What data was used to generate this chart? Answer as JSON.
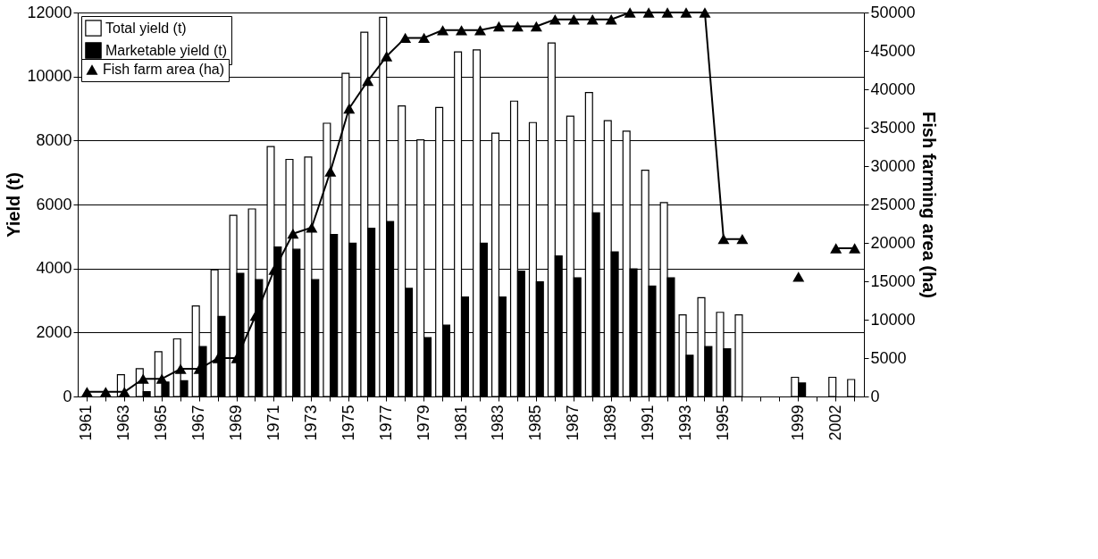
{
  "chart_data": {
    "type": "bar",
    "ylabel": "Yield (t)",
    "y2label": "Fish farming area (ha)",
    "categories": [
      "1961",
      null,
      "1963",
      null,
      "1965",
      null,
      "1967",
      null,
      "1969",
      null,
      "1971",
      null,
      "1973",
      null,
      "1975",
      null,
      "1977",
      null,
      "1979",
      null,
      "1981",
      null,
      "1983",
      null,
      "1985",
      null,
      "1987",
      null,
      "1989",
      null,
      "1991",
      null,
      "1993",
      null,
      "1995",
      null,
      null,
      null,
      "1999",
      null,
      "2002",
      null
    ],
    "series": [
      {
        "name": "Total yield (t)",
        "color": "#ffffff",
        "values": [
          null,
          null,
          680,
          870,
          1400,
          1800,
          2830,
          3960,
          5660,
          5860,
          7810,
          7410,
          7480,
          8540,
          10100,
          11380,
          11850,
          9080,
          8020,
          9030,
          10770,
          10830,
          8230,
          9230,
          8560,
          11050,
          8760,
          9500,
          8620,
          8290,
          7070,
          6060,
          2550,
          3090,
          2630,
          2550,
          null,
          null,
          600,
          null,
          600,
          530
        ]
      },
      {
        "name": "Marketable yield (t)",
        "color": "#000000",
        "values": [
          null,
          null,
          null,
          150,
          450,
          490,
          1560,
          2500,
          3850,
          3650,
          4670,
          4600,
          3650,
          5060,
          4790,
          5260,
          5470,
          3380,
          1840,
          2230,
          3110,
          4790,
          3110,
          3920,
          3580,
          4390,
          3710,
          5740,
          4520,
          3990,
          3450,
          3710,
          1290,
          1560,
          1490,
          null,
          null,
          null,
          420,
          null,
          null,
          null
        ]
      },
      {
        "name": "Fish farm area (ha)",
        "type": "line",
        "axis": "y2",
        "color": "#000000",
        "values": [
          600,
          600,
          600,
          2300,
          2300,
          3600,
          3600,
          5000,
          5000,
          10500,
          16500,
          21200,
          22000,
          29300,
          37500,
          41100,
          44300,
          46700,
          46700,
          47700,
          47700,
          47700,
          48200,
          48200,
          48200,
          49100,
          49100,
          49100,
          49100,
          50000,
          50000,
          50000,
          50000,
          50000,
          20500,
          20500,
          null,
          null,
          15600,
          null,
          19300,
          19300
        ]
      }
    ],
    "ylim": [
      0,
      12000
    ],
    "yticks": [
      0,
      2000,
      4000,
      6000,
      8000,
      10000,
      12000
    ],
    "y2lim": [
      0,
      50000
    ],
    "y2ticks": [
      0,
      5000,
      10000,
      15000,
      20000,
      25000,
      30000,
      35000,
      40000,
      45000,
      50000
    ],
    "grid": "y",
    "legend": "top left",
    "marker": "triangle"
  }
}
